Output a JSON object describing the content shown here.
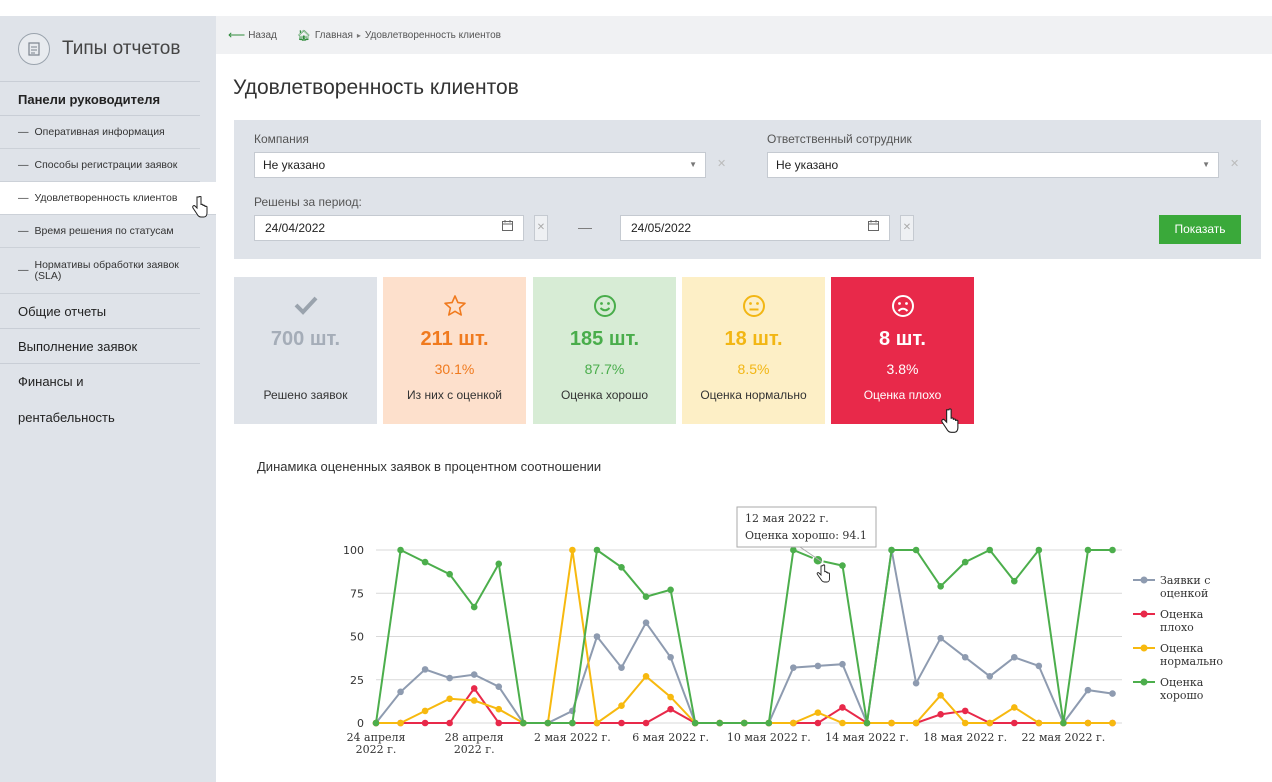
{
  "sidebar": {
    "header_title": "Типы отчетов",
    "section_title": "Панели руководителя",
    "items": [
      {
        "label": "Оперативная информация"
      },
      {
        "label": "Способы регистрации заявок"
      },
      {
        "label": "Удовлетворенность клиентов"
      },
      {
        "label": "Время решения по статусам"
      },
      {
        "label": "Нормативы обработки заявок (SLA)"
      }
    ],
    "groups": [
      {
        "label": "Общие отчеты"
      },
      {
        "label": "Выполнение заявок"
      },
      {
        "label": "Финансы и рентабельность"
      }
    ]
  },
  "breadcrumb": {
    "back": "Назад",
    "home": "Главная",
    "current": "Удовлетворенность клиентов"
  },
  "page_title": "Удовлетворенность клиентов",
  "filters": {
    "company_label": "Компания",
    "company_value": "Не указано",
    "employee_label": "Ответственный сотрудник",
    "employee_value": "Не указано",
    "period_label": "Решены за период:",
    "date_from": "24/04/2022",
    "date_to": "24/05/2022",
    "period_dash": "—",
    "show_button": "Показать"
  },
  "cards": [
    {
      "icon": "check-icon",
      "glyph": "✔",
      "count": "700 шт.",
      "percent": "",
      "label": "Решено заявок",
      "bg": "#dfe3e9",
      "color": "#a5adb8"
    },
    {
      "icon": "star-icon",
      "glyph": "☆",
      "count": "211 шт.",
      "percent": "30.1%",
      "label": "Из них с оценкой",
      "bg": "#fde0cc",
      "color": "#f07a1e"
    },
    {
      "icon": "smile-icon",
      "glyph": "☺",
      "count": "185 шт.",
      "percent": "87.7%",
      "label": "Оценка хорошо",
      "bg": "#d7ecd5",
      "color": "#49ad4b"
    },
    {
      "icon": "neutral-face-icon",
      "glyph": "😐",
      "count": "18 шт.",
      "percent": "8.5%",
      "label": "Оценка нормально",
      "bg": "#fdefc6",
      "color": "#f2b614"
    },
    {
      "icon": "sad-face-icon",
      "glyph": "☹",
      "count": "8 шт.",
      "percent": "3.8%",
      "label": "Оценка плохо",
      "bg": "#e8294a",
      "color": "#ffffff"
    }
  ],
  "chart_title": "Динамика оцененных заявок в процентном соотношении",
  "tooltip": {
    "date": "12 мая 2022 г.",
    "text": "Оценка хорошо: 94.1"
  },
  "chart_data": {
    "type": "line",
    "title": "Динамика оцененных заявок в процентном соотношении",
    "ylim": [
      0,
      100
    ],
    "yticks": [
      0,
      25,
      50,
      75,
      100
    ],
    "x_labels": [
      {
        "index": 0,
        "lines": [
          "24 апреля",
          "2022 г."
        ]
      },
      {
        "index": 4,
        "lines": [
          "28 апреля",
          "2022 г."
        ]
      },
      {
        "index": 8,
        "lines": [
          "2 мая 2022 г."
        ]
      },
      {
        "index": 12,
        "lines": [
          "6 мая 2022 г."
        ]
      },
      {
        "index": 16,
        "lines": [
          "10 мая 2022 г."
        ]
      },
      {
        "index": 20,
        "lines": [
          "14 мая 2022 г."
        ]
      },
      {
        "index": 24,
        "lines": [
          "18 мая 2022 г."
        ]
      },
      {
        "index": 28,
        "lines": [
          "22 мая 2022 г."
        ]
      }
    ],
    "x_count": 31,
    "legend_position": "right",
    "series": [
      {
        "name": "Заявки с оценкой",
        "legend_lines": [
          "Заявки с",
          "оценкой"
        ],
        "color": "#8e9bb0",
        "values": [
          0,
          18,
          31,
          26,
          28,
          21,
          0,
          0,
          7,
          50,
          32,
          58,
          38,
          0,
          0,
          0,
          0,
          32,
          33,
          34,
          0,
          100,
          23,
          49,
          38,
          27,
          38,
          33,
          0,
          19,
          17
        ]
      },
      {
        "name": "Оценка плохо",
        "legend_lines": [
          "Оценка",
          "плохо"
        ],
        "color": "#e8294a",
        "values": [
          0,
          0,
          0,
          0,
          20,
          0,
          0,
          0,
          0,
          0,
          0,
          0,
          8,
          0,
          0,
          0,
          0,
          0,
          0,
          9,
          0,
          0,
          0,
          5,
          7,
          0,
          0,
          0,
          0,
          0,
          0
        ]
      },
      {
        "name": "Оценка нормально",
        "legend_lines": [
          "Оценка",
          "нормально"
        ],
        "color": "#f7b90f",
        "values": [
          0,
          0,
          7,
          14,
          13,
          8,
          0,
          0,
          100,
          0,
          10,
          27,
          15,
          0,
          0,
          0,
          0,
          0,
          6,
          0,
          0,
          0,
          0,
          16,
          0,
          0,
          9,
          0,
          0,
          0,
          0
        ]
      },
      {
        "name": "Оценка хорошо",
        "legend_lines": [
          "Оценка",
          "хорошо"
        ],
        "color": "#4cae4c",
        "values": [
          0,
          100,
          93,
          86,
          67,
          92,
          0,
          0,
          0,
          100,
          90,
          73,
          77,
          0,
          0,
          0,
          0,
          100,
          94.1,
          91,
          0,
          100,
          100,
          79,
          93,
          100,
          82,
          100,
          0,
          100,
          100
        ]
      }
    ]
  }
}
